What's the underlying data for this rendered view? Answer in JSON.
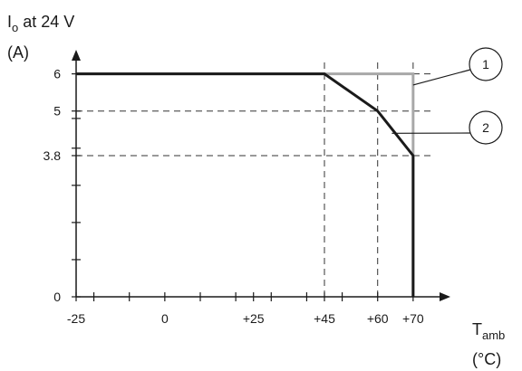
{
  "chart_data": {
    "type": "line",
    "ylabel": "I",
    "ylabel_sub": "o",
    "ylabel_rest": " at 24 V",
    "yunit": "(A)",
    "xlabel": "T",
    "xlabel_sub": "amb",
    "xunit": "(°C)",
    "xlim": [
      -25,
      80
    ],
    "ylim": [
      0,
      6.6
    ],
    "x_tick_labels": [
      {
        "value": -25,
        "label": "-25"
      },
      {
        "value": 0,
        "label": "0"
      },
      {
        "value": 25,
        "label": "+25"
      },
      {
        "value": 45,
        "label": "+45"
      },
      {
        "value": 60,
        "label": "+60"
      },
      {
        "value": 70,
        "label": "+70"
      }
    ],
    "x_minor_ticks": [
      -20,
      -10,
      10,
      20,
      30,
      40,
      50
    ],
    "y_tick_labels": [
      {
        "value": 0,
        "label": "0"
      },
      {
        "value": 3.8,
        "label": "3.8"
      },
      {
        "value": 5,
        "label": "5"
      },
      {
        "value": 6,
        "label": "6"
      }
    ],
    "y_minor_ticks": [
      1,
      2,
      3,
      4,
      4.8
    ],
    "reference_lines": {
      "vertical": [
        45,
        60,
        70
      ],
      "horizontal": [
        3.8,
        5,
        6
      ]
    },
    "series": [
      {
        "callout": "1",
        "color": "#a8a8a8",
        "points": [
          [
            -25,
            6
          ],
          [
            45,
            6
          ],
          [
            70,
            6
          ],
          [
            70,
            3.8
          ],
          [
            70,
            0
          ]
        ]
      },
      {
        "callout": "2",
        "color": "#1a1a1a",
        "points": [
          [
            -25,
            6
          ],
          [
            45,
            6
          ],
          [
            60,
            5
          ],
          [
            70,
            3.8
          ],
          [
            70,
            0
          ]
        ]
      }
    ],
    "callouts": [
      {
        "text": "1",
        "anchor": [
          70,
          5.7
        ]
      },
      {
        "text": "2",
        "anchor": [
          64,
          4.4
        ]
      }
    ]
  }
}
